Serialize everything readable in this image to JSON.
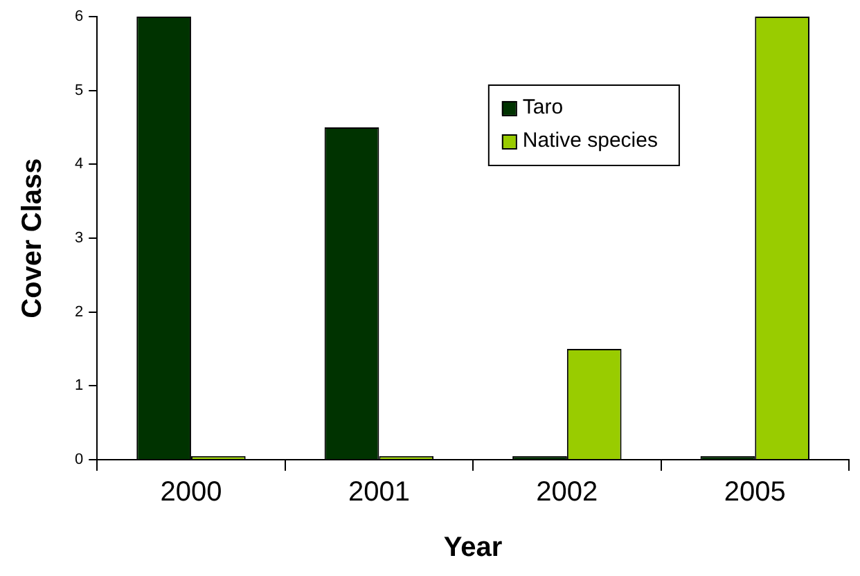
{
  "chart_data": {
    "type": "bar",
    "xlabel": "Year",
    "ylabel": "Cover Class",
    "categories": [
      "2000",
      "2001",
      "2002",
      "2005"
    ],
    "series": [
      {
        "name": "Taro",
        "color": "#003300",
        "values": [
          6,
          4.5,
          0.05,
          0.05
        ]
      },
      {
        "name": "Native species",
        "color": "#99cc00",
        "values": [
          0.05,
          0.05,
          1.5,
          6
        ]
      }
    ],
    "ylim": [
      0,
      6
    ],
    "yticks": [
      0,
      1,
      2,
      3,
      4,
      5,
      6
    ],
    "grid": false,
    "legend": "top right"
  }
}
